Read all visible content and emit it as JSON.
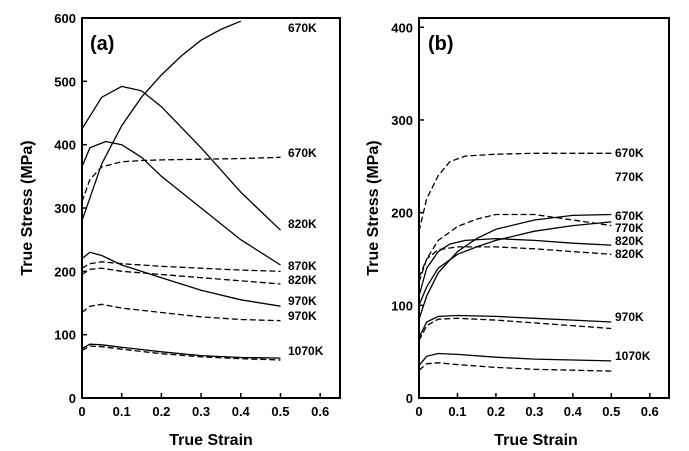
{
  "chart_data": [
    {
      "type": "line",
      "panel_label": "(a)",
      "xlabel": "True Strain",
      "ylabel": "True Stress (MPa)",
      "xlim": [
        0,
        0.65
      ],
      "ylim": [
        0,
        600
      ],
      "xticks": [
        "0",
        "0.1",
        "0.2",
        "0.3",
        "0.4",
        "0.5",
        "0.6"
      ],
      "yticks": [
        "0",
        "100",
        "200",
        "300",
        "400",
        "500",
        "600"
      ],
      "grid": false,
      "series": [
        {
          "name": "670K",
          "style": "solid",
          "label": "670K",
          "x": [
            0.0,
            0.05,
            0.1,
            0.15,
            0.2,
            0.25,
            0.3,
            0.35,
            0.4
          ],
          "y": [
            280,
            370,
            430,
            475,
            510,
            540,
            565,
            582,
            595
          ]
        },
        {
          "name": "670K",
          "style": "dashed",
          "label": "670K",
          "x": [
            0.0,
            0.02,
            0.05,
            0.1,
            0.15,
            0.2,
            0.3,
            0.4,
            0.5
          ],
          "y": [
            310,
            345,
            365,
            373,
            375,
            376,
            377,
            378,
            380
          ]
        },
        {
          "name": "820K",
          "style": "solid",
          "label": "820K",
          "x": [
            0.0,
            0.05,
            0.1,
            0.15,
            0.2,
            0.3,
            0.4,
            0.5
          ],
          "y": [
            425,
            475,
            492,
            485,
            460,
            395,
            325,
            265
          ]
        },
        {
          "name": "870K",
          "style": "solid",
          "label": "",
          "x": [
            0.0,
            0.02,
            0.06,
            0.1,
            0.15,
            0.2,
            0.3,
            0.4,
            0.5
          ],
          "y": [
            365,
            395,
            405,
            400,
            380,
            350,
            300,
            250,
            210
          ]
        },
        {
          "name": "870K",
          "style": "dashed",
          "label": "870K",
          "x": [
            0.0,
            0.02,
            0.05,
            0.1,
            0.2,
            0.3,
            0.4,
            0.5
          ],
          "y": [
            205,
            212,
            215,
            212,
            208,
            205,
            202,
            200
          ]
        },
        {
          "name": "820K",
          "style": "dashed",
          "label": "820K",
          "x": [
            0.0,
            0.02,
            0.05,
            0.1,
            0.2,
            0.3,
            0.4,
            0.5
          ],
          "y": [
            195,
            203,
            205,
            200,
            195,
            190,
            185,
            180
          ]
        },
        {
          "name": "970K",
          "style": "solid",
          "label": "970K",
          "x": [
            0.0,
            0.02,
            0.05,
            0.1,
            0.2,
            0.3,
            0.4,
            0.5
          ],
          "y": [
            220,
            230,
            225,
            210,
            190,
            170,
            155,
            145
          ]
        },
        {
          "name": "970K",
          "style": "dashed",
          "label": "970K",
          "x": [
            0.0,
            0.02,
            0.05,
            0.1,
            0.2,
            0.3,
            0.4,
            0.5
          ],
          "y": [
            135,
            145,
            148,
            142,
            135,
            128,
            124,
            122
          ]
        },
        {
          "name": "1070K",
          "style": "solid",
          "label": "1070K",
          "x": [
            0.0,
            0.02,
            0.05,
            0.1,
            0.2,
            0.3,
            0.4,
            0.5
          ],
          "y": [
            78,
            85,
            84,
            80,
            73,
            67,
            64,
            63
          ]
        },
        {
          "name": "1070K",
          "style": "dashed",
          "label": "",
          "x": [
            0.0,
            0.02,
            0.05,
            0.1,
            0.2,
            0.3,
            0.4,
            0.5
          ],
          "y": [
            75,
            82,
            81,
            77,
            70,
            65,
            62,
            60
          ]
        }
      ]
    },
    {
      "type": "line",
      "panel_label": "(b)",
      "xlabel": "True Strain",
      "ylabel": "True Stress (MPa)",
      "xlim": [
        0,
        0.65
      ],
      "ylim": [
        0,
        410
      ],
      "xticks": [
        "0",
        "0.1",
        "0.2",
        "0.3",
        "0.4",
        "0.5",
        "0.6"
      ],
      "yticks": [
        "0",
        "100",
        "200",
        "300",
        "400"
      ],
      "grid": false,
      "series": [
        {
          "name": "670K",
          "style": "dashed",
          "label": "670K",
          "x": [
            0.0,
            0.02,
            0.05,
            0.08,
            0.12,
            0.2,
            0.3,
            0.4,
            0.5
          ],
          "y": [
            180,
            215,
            240,
            255,
            261,
            263,
            264,
            264,
            264
          ]
        },
        {
          "name": "770K",
          "style": "solid",
          "label": "770K",
          "x": [
            0.0,
            0.02,
            0.05,
            0.1,
            0.15,
            0.2,
            0.3,
            0.4,
            0.5
          ],
          "y": [
            85,
            110,
            135,
            158,
            172,
            182,
            192,
            197,
            198
          ]
        },
        {
          "name": "670K",
          "style": "solid",
          "label": "670K",
          "x": [
            0.0,
            0.02,
            0.05,
            0.1,
            0.15,
            0.2,
            0.3,
            0.4,
            0.5
          ],
          "y": [
            100,
            120,
            140,
            155,
            163,
            170,
            180,
            186,
            190
          ]
        },
        {
          "name": "770K",
          "style": "dashed",
          "label": "770K",
          "x": [
            0.0,
            0.02,
            0.05,
            0.1,
            0.15,
            0.2,
            0.3,
            0.4,
            0.5
          ],
          "y": [
            125,
            150,
            170,
            185,
            193,
            198,
            198,
            192,
            186
          ]
        },
        {
          "name": "820K",
          "style": "solid",
          "label": "820K",
          "x": [
            0.0,
            0.02,
            0.05,
            0.08,
            0.12,
            0.2,
            0.3,
            0.4,
            0.5
          ],
          "y": [
            110,
            140,
            158,
            166,
            170,
            172,
            170,
            167,
            165
          ]
        },
        {
          "name": "820K",
          "style": "dashed",
          "label": "820K",
          "x": [
            0.0,
            0.02,
            0.05,
            0.1,
            0.2,
            0.3,
            0.4,
            0.5
          ],
          "y": [
            130,
            150,
            160,
            163,
            163,
            161,
            158,
            155
          ]
        },
        {
          "name": "970K",
          "style": "solid",
          "label": "",
          "x": [
            0.0,
            0.02,
            0.05,
            0.1,
            0.2,
            0.3,
            0.4,
            0.5
          ],
          "y": [
            65,
            82,
            88,
            89,
            88,
            86,
            84,
            82
          ]
        },
        {
          "name": "970K",
          "style": "dashed",
          "label": "970K",
          "x": [
            0.0,
            0.02,
            0.05,
            0.1,
            0.2,
            0.3,
            0.4,
            0.5
          ],
          "y": [
            62,
            78,
            85,
            86,
            84,
            81,
            78,
            75
          ]
        },
        {
          "name": "1070K",
          "style": "solid",
          "label": "1070K",
          "x": [
            0.0,
            0.02,
            0.05,
            0.1,
            0.2,
            0.3,
            0.4,
            0.5
          ],
          "y": [
            35,
            45,
            48,
            47,
            44,
            42,
            41,
            40
          ]
        },
        {
          "name": "1070K",
          "style": "dashed",
          "label": "",
          "x": [
            0.0,
            0.02,
            0.05,
            0.1,
            0.2,
            0.3,
            0.4,
            0.5
          ],
          "y": [
            30,
            37,
            38,
            36,
            33,
            31,
            30,
            29
          ]
        }
      ]
    }
  ]
}
